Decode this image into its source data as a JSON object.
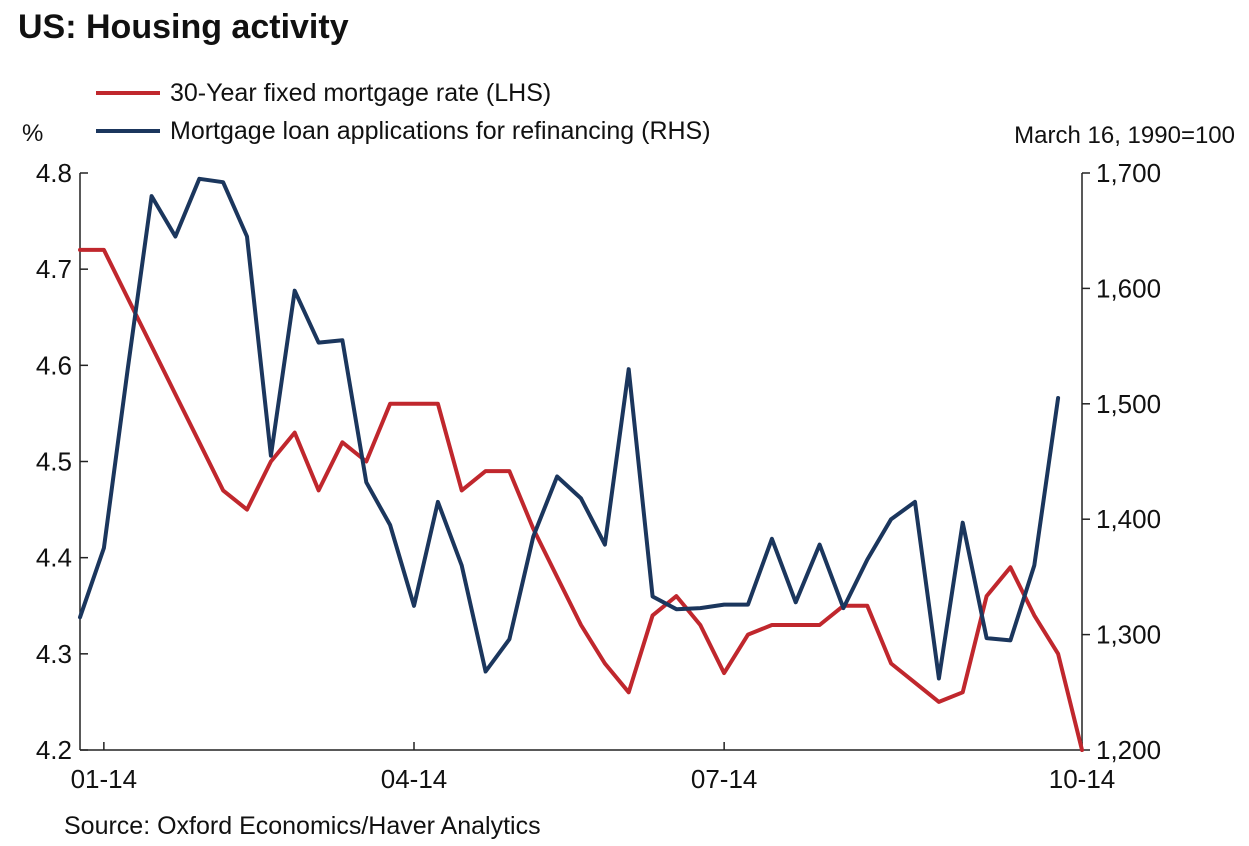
{
  "chart_data": {
    "type": "line",
    "title": "US: Housing activity",
    "source": "Source: Oxford Economics/Haver Analytics",
    "left_axis": {
      "unit": "%",
      "range": [
        4.2,
        4.8
      ],
      "ticks": [
        "4.2",
        "4.3",
        "4.4",
        "4.5",
        "4.6",
        "4.7",
        "4.8"
      ]
    },
    "right_axis": {
      "unit": "March 16, 1990=100",
      "range": [
        1200,
        1700
      ],
      "ticks": [
        "1,200",
        "1,300",
        "1,400",
        "1,500",
        "1,600",
        "1,700"
      ]
    },
    "x_axis": {
      "ticks": [
        "01-14",
        "04-14",
        "07-14",
        "10-14"
      ],
      "tick_positions": [
        1,
        14,
        27,
        42
      ]
    },
    "grid": false,
    "legend_position": "top-left",
    "series": [
      {
        "name": "30-Year fixed mortgage rate (LHS)",
        "axis": "left",
        "color": "#c0272d",
        "values": [
          4.72,
          4.72,
          4.67,
          4.62,
          4.57,
          4.52,
          4.47,
          4.45,
          4.5,
          4.53,
          4.47,
          4.52,
          4.5,
          4.56,
          4.56,
          4.56,
          4.47,
          4.49,
          4.49,
          4.43,
          4.38,
          4.33,
          4.29,
          4.26,
          4.34,
          4.36,
          4.33,
          4.28,
          4.32,
          4.33,
          4.33,
          4.33,
          4.35,
          4.35,
          4.29,
          4.27,
          4.25,
          4.26,
          4.36,
          4.39,
          4.34,
          4.3,
          4.2
        ]
      },
      {
        "name": "Mortgage loan applications for refinancing (RHS)",
        "axis": "right",
        "color": "#1b365d",
        "values": [
          1315,
          1375,
          1530,
          1680,
          1645,
          1695,
          1692,
          1645,
          1455,
          1598,
          1553,
          1555,
          1432,
          1395,
          1325,
          1415,
          1360,
          1268,
          1296,
          1385,
          1437,
          1418,
          1378,
          1530,
          1333,
          1322,
          1323,
          1326,
          1326,
          1383,
          1328,
          1378,
          1323,
          1365,
          1400,
          1415,
          1262,
          1397,
          1297,
          1295,
          1360,
          1505
        ]
      }
    ]
  }
}
